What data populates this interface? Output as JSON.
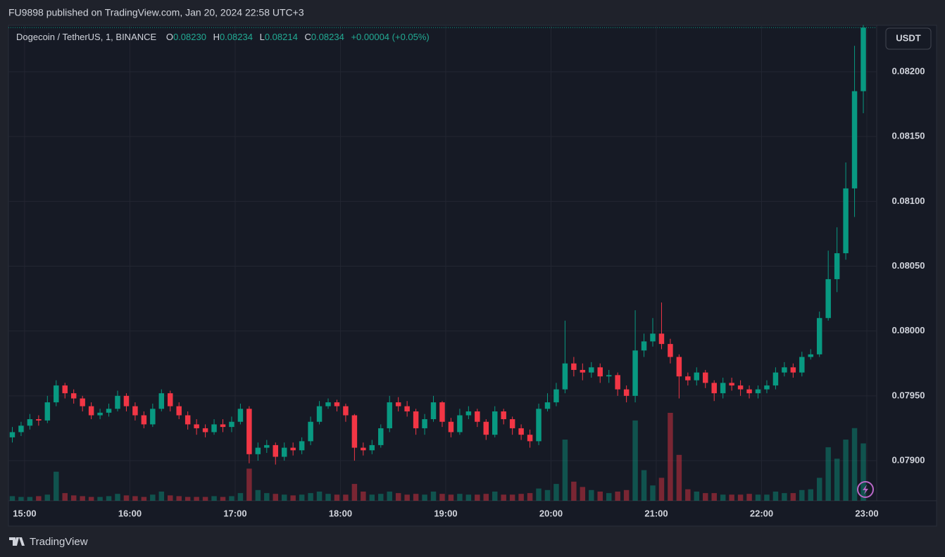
{
  "header": {
    "title": "FU9898 published on TradingView.com, Jan 20, 2024 22:58 UTC+3"
  },
  "footer": {
    "brand": "TradingView"
  },
  "chart_data": {
    "type": "candlestick",
    "legend": {
      "symbol": "Dogecoin / TetherUS, 1, BINANCE",
      "o_label": "O",
      "o_value": "0.08230",
      "h_label": "H",
      "h_value": "0.08234",
      "l_label": "L",
      "l_value": "0.08214",
      "c_label": "C",
      "c_value": "0.08234",
      "change": "+0.00004 (+0.05%)"
    },
    "currency": "USDT",
    "up_color": "#089981",
    "down_color": "#f23645",
    "grid": true,
    "xlim": [
      891.6,
      1380.4
    ],
    "xticks": [
      {
        "value": 900,
        "label": "15:00"
      },
      {
        "value": 960,
        "label": "16:00"
      },
      {
        "value": 1020,
        "label": "17:00"
      },
      {
        "value": 1080,
        "label": "18:00"
      },
      {
        "value": 1140,
        "label": "19:00"
      },
      {
        "value": 1200,
        "label": "20:00"
      },
      {
        "value": 1260,
        "label": "21:00"
      },
      {
        "value": 1320,
        "label": "22:00"
      },
      {
        "value": 1380,
        "label": "23:00"
      }
    ],
    "ylim": [
      0.078691,
      0.082347
    ],
    "yticks": [
      {
        "value": 0.079,
        "label": "0.07900"
      },
      {
        "value": 0.0795,
        "label": "0.07950"
      },
      {
        "value": 0.08,
        "label": "0.08000"
      },
      {
        "value": 0.0805,
        "label": "0.08050"
      },
      {
        "value": 0.081,
        "label": "0.08100"
      },
      {
        "value": 0.0815,
        "label": "0.08150"
      },
      {
        "value": 0.082,
        "label": "0.08200"
      }
    ],
    "x": [
      893,
      898,
      903,
      908,
      913,
      918,
      923,
      928,
      933,
      938,
      943,
      948,
      953,
      958,
      963,
      968,
      973,
      978,
      983,
      988,
      993,
      998,
      1003,
      1008,
      1013,
      1018,
      1023,
      1028,
      1033,
      1038,
      1043,
      1048,
      1053,
      1058,
      1063,
      1068,
      1073,
      1078,
      1083,
      1088,
      1093,
      1098,
      1103,
      1108,
      1113,
      1118,
      1123,
      1128,
      1133,
      1138,
      1143,
      1148,
      1153,
      1158,
      1163,
      1168,
      1173,
      1178,
      1183,
      1188,
      1193,
      1198,
      1203,
      1208,
      1213,
      1218,
      1223,
      1228,
      1233,
      1238,
      1243,
      1248,
      1253,
      1258,
      1263,
      1268,
      1273,
      1278,
      1283,
      1288,
      1293,
      1298,
      1303,
      1308,
      1313,
      1318,
      1323,
      1328,
      1333,
      1338,
      1343,
      1348,
      1353,
      1358,
      1363,
      1368,
      1373,
      1378
    ],
    "open": [
      0.07918,
      0.07922,
      0.07927,
      0.07932,
      0.07931,
      0.07945,
      0.07958,
      0.07952,
      0.07948,
      0.07942,
      0.07935,
      0.07937,
      0.0794,
      0.0795,
      0.07942,
      0.07935,
      0.07928,
      0.0794,
      0.07952,
      0.07942,
      0.07935,
      0.07928,
      0.07925,
      0.07922,
      0.07928,
      0.07926,
      0.0793,
      0.0794,
      0.07905,
      0.0791,
      0.07912,
      0.07903,
      0.0791,
      0.07908,
      0.07915,
      0.0793,
      0.07942,
      0.07945,
      0.07942,
      0.07935,
      0.0791,
      0.07908,
      0.07912,
      0.07925,
      0.07945,
      0.07942,
      0.07938,
      0.07925,
      0.07932,
      0.07945,
      0.0793,
      0.07922,
      0.07935,
      0.07938,
      0.0793,
      0.0792,
      0.07938,
      0.07932,
      0.07925,
      0.0792,
      0.07915,
      0.0794,
      0.07945,
      0.07955,
      0.07975,
      0.0797,
      0.07968,
      0.07972,
      0.07965,
      0.07966,
      0.07955,
      0.0795,
      0.07985,
      0.07992,
      0.07998,
      0.0799,
      0.0798,
      0.07965,
      0.07962,
      0.07968,
      0.0796,
      0.07952,
      0.0796,
      0.07958,
      0.07955,
      0.07952,
      0.07955,
      0.07958,
      0.07968,
      0.07972,
      0.07968,
      0.0798,
      0.07982,
      0.0801,
      0.0804,
      0.0806,
      0.0811,
      0.08185
    ],
    "high": [
      0.07926,
      0.0793,
      0.07936,
      0.07935,
      0.0795,
      0.07962,
      0.0796,
      0.07955,
      0.0795,
      0.07945,
      0.0794,
      0.07944,
      0.07954,
      0.07952,
      0.07945,
      0.07938,
      0.07944,
      0.07955,
      0.07954,
      0.07945,
      0.07938,
      0.07932,
      0.07928,
      0.07932,
      0.07932,
      0.07934,
      0.07944,
      0.07942,
      0.07914,
      0.07916,
      0.07914,
      0.07914,
      0.07914,
      0.07918,
      0.07934,
      0.07946,
      0.07948,
      0.07947,
      0.07944,
      0.07936,
      0.07914,
      0.07916,
      0.07928,
      0.0795,
      0.07949,
      0.07946,
      0.0794,
      0.07936,
      0.0795,
      0.07946,
      0.07933,
      0.0794,
      0.07942,
      0.0794,
      0.07932,
      0.07942,
      0.0794,
      0.07934,
      0.07928,
      0.07924,
      0.07944,
      0.07952,
      0.0796,
      0.08008,
      0.0798,
      0.07975,
      0.07976,
      0.07975,
      0.0797,
      0.07968,
      0.07958,
      0.08016,
      0.07998,
      0.0801,
      0.08022,
      0.07994,
      0.07982,
      0.07968,
      0.07972,
      0.0797,
      0.07962,
      0.07964,
      0.07964,
      0.07962,
      0.07958,
      0.07958,
      0.07962,
      0.07972,
      0.07976,
      0.07975,
      0.07984,
      0.07986,
      0.08015,
      0.08062,
      0.0808,
      0.0813,
      0.0822,
      0.08236
    ],
    "low": [
      0.07914,
      0.07919,
      0.07924,
      0.07927,
      0.07929,
      0.07942,
      0.07948,
      0.07944,
      0.07938,
      0.07932,
      0.07932,
      0.07934,
      0.07938,
      0.07938,
      0.07931,
      0.07925,
      0.07926,
      0.07938,
      0.07938,
      0.07932,
      0.07924,
      0.0792,
      0.07918,
      0.0792,
      0.07922,
      0.07922,
      0.07928,
      0.07898,
      0.079,
      0.07906,
      0.07897,
      0.079,
      0.07904,
      0.07905,
      0.07912,
      0.07928,
      0.0794,
      0.07938,
      0.0793,
      0.079,
      0.07904,
      0.07905,
      0.0791,
      0.07922,
      0.07938,
      0.07934,
      0.0792,
      0.0792,
      0.0793,
      0.07926,
      0.07918,
      0.0792,
      0.07932,
      0.07926,
      0.07916,
      0.07918,
      0.07928,
      0.0792,
      0.07916,
      0.0791,
      0.07912,
      0.07938,
      0.07942,
      0.07952,
      0.07965,
      0.07962,
      0.07964,
      0.0796,
      0.0796,
      0.0795,
      0.07945,
      0.07945,
      0.0798,
      0.07988,
      0.07986,
      0.07975,
      0.07948,
      0.07958,
      0.07958,
      0.07956,
      0.07946,
      0.07948,
      0.07954,
      0.0795,
      0.07948,
      0.07948,
      0.07952,
      0.07955,
      0.07965,
      0.07964,
      0.07965,
      0.07978,
      0.0798,
      0.08008,
      0.0803,
      0.08055,
      0.08088,
      0.08168
    ],
    "close": [
      0.07922,
      0.07927,
      0.07932,
      0.07931,
      0.07945,
      0.07958,
      0.07952,
      0.07948,
      0.07942,
      0.07935,
      0.07937,
      0.0794,
      0.0795,
      0.07942,
      0.07935,
      0.07928,
      0.0794,
      0.07952,
      0.07942,
      0.07935,
      0.07928,
      0.07925,
      0.07922,
      0.07928,
      0.07926,
      0.0793,
      0.0794,
      0.07905,
      0.0791,
      0.07912,
      0.07903,
      0.0791,
      0.07908,
      0.07915,
      0.0793,
      0.07942,
      0.07945,
      0.07942,
      0.07935,
      0.0791,
      0.07908,
      0.07912,
      0.07925,
      0.07945,
      0.07942,
      0.07938,
      0.07925,
      0.07932,
      0.07945,
      0.0793,
      0.07922,
      0.07935,
      0.07938,
      0.0793,
      0.0792,
      0.07938,
      0.07932,
      0.07925,
      0.0792,
      0.07915,
      0.0794,
      0.07945,
      0.07955,
      0.07975,
      0.0797,
      0.07968,
      0.07972,
      0.07965,
      0.07966,
      0.07955,
      0.0795,
      0.07985,
      0.07992,
      0.07998,
      0.0799,
      0.0798,
      0.07965,
      0.07962,
      0.07968,
      0.0796,
      0.07952,
      0.0796,
      0.07958,
      0.07955,
      0.07952,
      0.07955,
      0.07958,
      0.07968,
      0.07972,
      0.07968,
      0.0798,
      0.07982,
      0.0801,
      0.0804,
      0.0806,
      0.0811,
      0.08185,
      0.08234
    ],
    "volume": [
      6,
      5,
      5,
      6,
      8,
      38,
      10,
      7,
      6,
      5,
      5,
      6,
      9,
      7,
      6,
      5,
      8,
      12,
      7,
      6,
      5,
      5,
      5,
      6,
      5,
      6,
      10,
      42,
      14,
      10,
      9,
      8,
      7,
      8,
      10,
      12,
      9,
      8,
      8,
      22,
      12,
      8,
      9,
      12,
      10,
      8,
      9,
      8,
      12,
      9,
      8,
      9,
      8,
      8,
      9,
      12,
      8,
      8,
      9,
      10,
      16,
      14,
      22,
      80,
      25,
      18,
      14,
      12,
      10,
      12,
      14,
      105,
      40,
      20,
      30,
      115,
      60,
      15,
      12,
      10,
      10,
      8,
      8,
      8,
      9,
      8,
      8,
      12,
      10,
      10,
      14,
      15,
      30,
      70,
      55,
      80,
      95,
      75
    ]
  }
}
